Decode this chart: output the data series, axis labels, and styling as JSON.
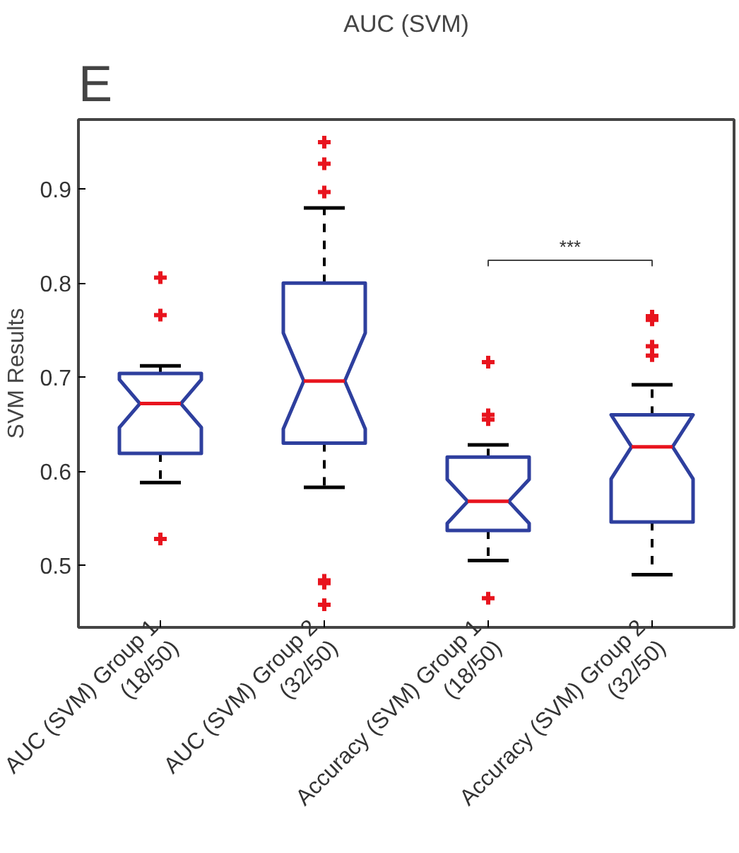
{
  "chart_data": {
    "type": "box",
    "title": "AUC (SVM)",
    "ylabel": "SVM Results",
    "categories": [
      "AUC (SVM) Group 1\n(18/50)",
      "AUC (SVM) Group 2\n(32/50)",
      "Accuracy (SVM) Group 1\n(18/50)",
      "Accuracy (SVM) Group 2\n(32/50)"
    ],
    "color": "#2e3f9e",
    "boxes": [
      {
        "low": 0.588,
        "q1": 0.619,
        "median": 0.672,
        "q3": 0.704,
        "high": 0.712,
        "outliers": [
          0.806,
          0.766,
          0.528
        ]
      },
      {
        "low": 0.583,
        "q1": 0.63,
        "median": 0.696,
        "q3": 0.8,
        "high": 0.88,
        "outliers": [
          0.95,
          0.927,
          0.897,
          0.484,
          0.481,
          0.458
        ]
      },
      {
        "low": 0.505,
        "q1": 0.537,
        "median": 0.568,
        "q3": 0.615,
        "high": 0.628,
        "outliers": [
          0.716,
          0.66,
          0.655,
          0.465
        ]
      },
      {
        "low": 0.49,
        "q1": 0.546,
        "median": 0.626,
        "q3": 0.66,
        "high": 0.692,
        "outliers": [
          0.765,
          0.761,
          0.733,
          0.723
        ]
      }
    ],
    "ylim": [
      0.434,
      0.974
    ],
    "yticks": [
      0.5,
      0.6,
      0.7,
      0.8,
      0.9
    ],
    "marker": "cross",
    "grid": false,
    "annotations": [
      "E",
      "***"
    ]
  }
}
